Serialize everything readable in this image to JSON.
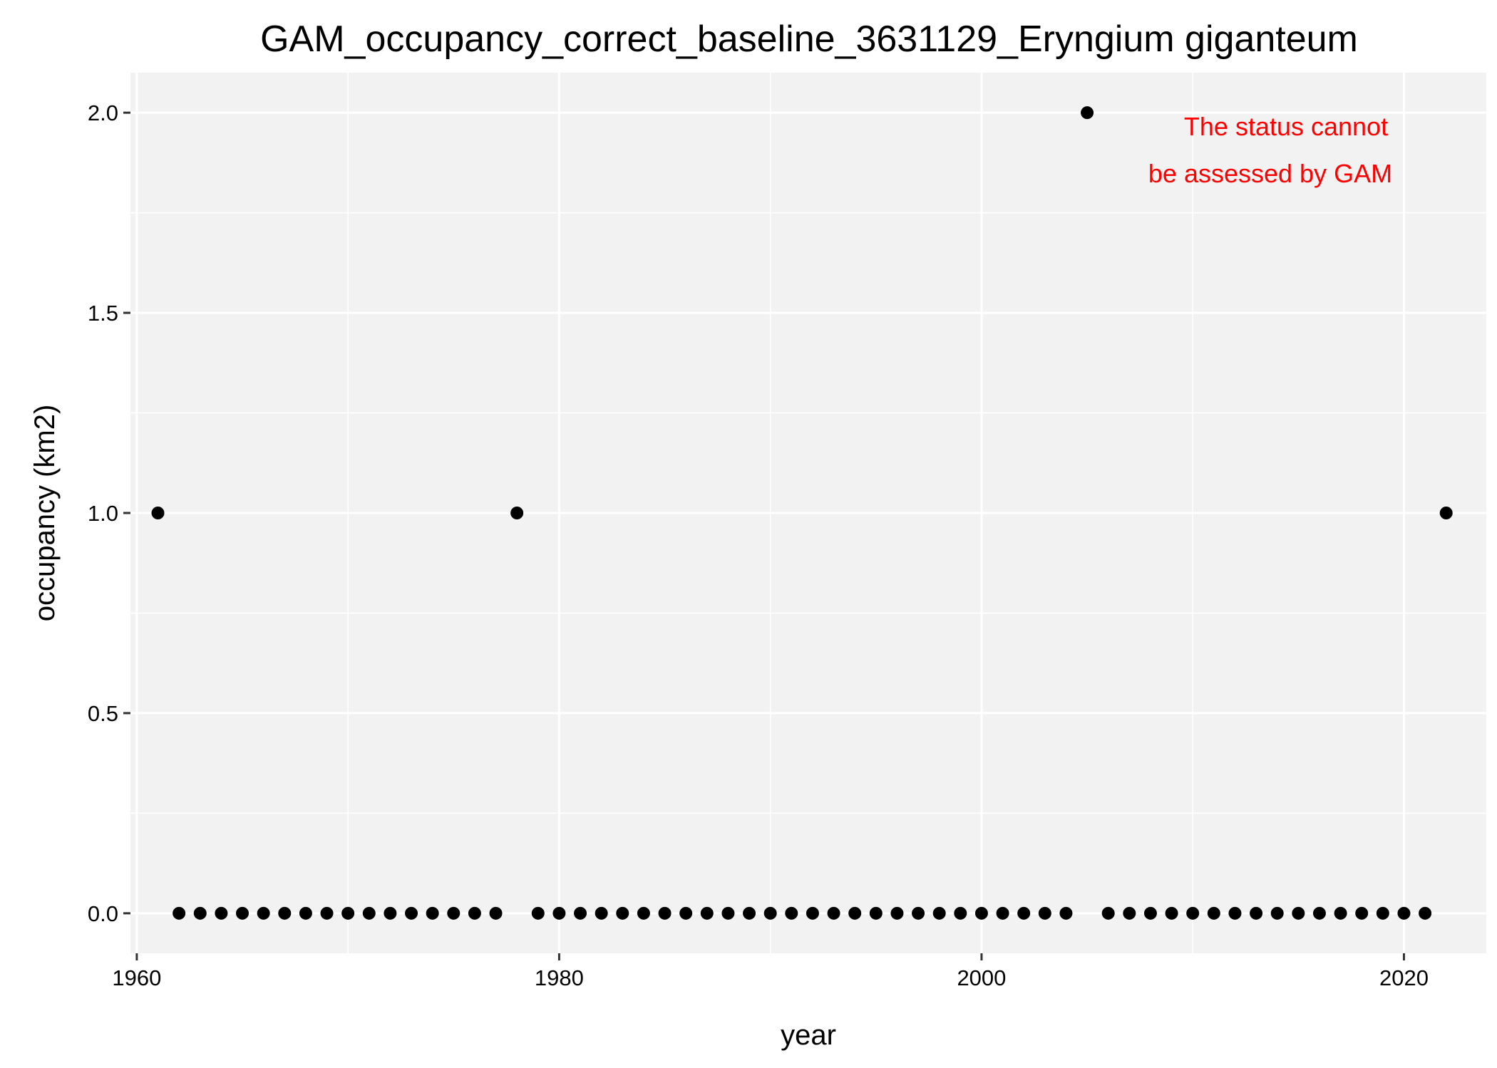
{
  "chart_data": {
    "type": "scatter",
    "title": "GAM_occupancy_correct_baseline_3631129_Eryngium giganteum",
    "xlabel": "year",
    "ylabel": "occupancy (km2)",
    "xlim": [
      1959.7,
      2023.9
    ],
    "ylim": [
      -0.1,
      2.1
    ],
    "x_ticks": [
      1960,
      1980,
      2000,
      2020
    ],
    "x_tick_labels": [
      "1960",
      "1980",
      "2000",
      "2020"
    ],
    "x_minor_ticks": [
      1970,
      1990,
      2010
    ],
    "y_ticks": [
      0.0,
      0.5,
      1.0,
      1.5,
      2.0
    ],
    "y_tick_labels": [
      "0.0",
      "0.5",
      "1.0",
      "1.5",
      "2.0"
    ],
    "y_minor_ticks": [
      0.25,
      0.75,
      1.25,
      1.75
    ],
    "grid": true,
    "annotation": {
      "lines": [
        "The status cannot",
        "be assessed by GAM"
      ],
      "color": "#ff0000",
      "placement": "top-right"
    },
    "colors": {
      "panel": "#f2f2f2",
      "grid": "#ffffff",
      "points": "#000000",
      "ticks": "#333333"
    },
    "points": [
      [
        1961,
        1
      ],
      [
        1962,
        0
      ],
      [
        1963,
        0
      ],
      [
        1964,
        0
      ],
      [
        1965,
        0
      ],
      [
        1966,
        0
      ],
      [
        1967,
        0
      ],
      [
        1968,
        0
      ],
      [
        1969,
        0
      ],
      [
        1970,
        0
      ],
      [
        1971,
        0
      ],
      [
        1972,
        0
      ],
      [
        1973,
        0
      ],
      [
        1974,
        0
      ],
      [
        1975,
        0
      ],
      [
        1976,
        0
      ],
      [
        1977,
        0
      ],
      [
        1978,
        1
      ],
      [
        1979,
        0
      ],
      [
        1980,
        0
      ],
      [
        1981,
        0
      ],
      [
        1982,
        0
      ],
      [
        1983,
        0
      ],
      [
        1984,
        0
      ],
      [
        1985,
        0
      ],
      [
        1986,
        0
      ],
      [
        1987,
        0
      ],
      [
        1988,
        0
      ],
      [
        1989,
        0
      ],
      [
        1990,
        0
      ],
      [
        1991,
        0
      ],
      [
        1992,
        0
      ],
      [
        1993,
        0
      ],
      [
        1994,
        0
      ],
      [
        1995,
        0
      ],
      [
        1996,
        0
      ],
      [
        1997,
        0
      ],
      [
        1998,
        0
      ],
      [
        1999,
        0
      ],
      [
        2000,
        0
      ],
      [
        2001,
        0
      ],
      [
        2002,
        0
      ],
      [
        2003,
        0
      ],
      [
        2004,
        0
      ],
      [
        2005,
        2
      ],
      [
        2006,
        0
      ],
      [
        2007,
        0
      ],
      [
        2008,
        0
      ],
      [
        2009,
        0
      ],
      [
        2010,
        0
      ],
      [
        2011,
        0
      ],
      [
        2012,
        0
      ],
      [
        2013,
        0
      ],
      [
        2014,
        0
      ],
      [
        2015,
        0
      ],
      [
        2016,
        0
      ],
      [
        2017,
        0
      ],
      [
        2018,
        0
      ],
      [
        2019,
        0
      ],
      [
        2020,
        0
      ],
      [
        2021,
        0
      ],
      [
        2022,
        1
      ]
    ]
  }
}
